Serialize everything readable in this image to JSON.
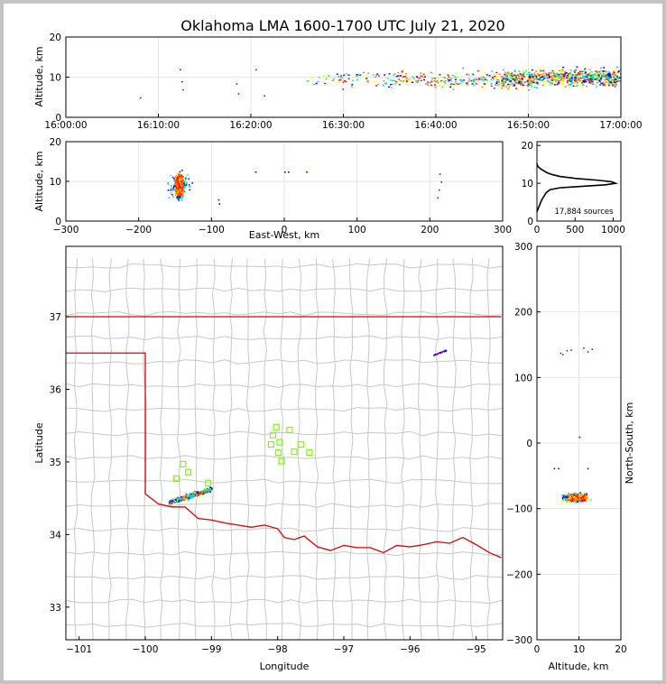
{
  "title": "Oklahoma LMA 1600-1700 UTC July 21, 2020",
  "chart_data": [
    {
      "id": "altitude-time",
      "type": "scatter",
      "xlabel": "",
      "ylabel": "Altitude, km",
      "x_ticks": [
        "16:00:00",
        "16:10:00",
        "16:20:00",
        "16:30:00",
        "16:40:00",
        "16:50:00",
        "17:00:00"
      ],
      "xlim_minutes": [
        0,
        60
      ],
      "ylim": [
        0,
        20
      ],
      "y_ticks": [
        0,
        10,
        20
      ],
      "grid": true
    },
    {
      "id": "altitude-eastwest",
      "type": "scatter",
      "xlabel": "East-West, km",
      "ylabel": "Altitude, km",
      "xlim": [
        -300,
        300
      ],
      "x_ticks": [
        -300,
        -200,
        -100,
        0,
        100,
        200,
        300
      ],
      "ylim": [
        0,
        20
      ],
      "y_ticks": [
        0,
        10,
        20
      ],
      "grid": true
    },
    {
      "id": "altitude-histogram",
      "type": "line",
      "xlim": [
        0,
        1100
      ],
      "x_ticks": [
        0,
        500,
        1000
      ],
      "ylim": [
        0,
        21
      ],
      "y_ticks": [
        0,
        10,
        20
      ],
      "annotation": "17,884 sources",
      "profile": [
        [
          0,
          2.5
        ],
        [
          20,
          3.5
        ],
        [
          40,
          4.5
        ],
        [
          60,
          5.5
        ],
        [
          90,
          6.5
        ],
        [
          120,
          7.5
        ],
        [
          170,
          8.3
        ],
        [
          300,
          8.8
        ],
        [
          600,
          9.2
        ],
        [
          900,
          9.6
        ],
        [
          1030,
          10.0
        ],
        [
          980,
          10.4
        ],
        [
          800,
          10.8
        ],
        [
          500,
          11.3
        ],
        [
          300,
          11.8
        ],
        [
          200,
          12.3
        ],
        [
          130,
          12.8
        ],
        [
          90,
          13.3
        ],
        [
          50,
          13.8
        ],
        [
          20,
          14.3
        ],
        [
          5,
          14.8
        ],
        [
          0,
          15.2
        ]
      ]
    },
    {
      "id": "plan-view",
      "type": "scatter",
      "xlabel": "Longitude",
      "ylabel": "Latitude",
      "xlim": [
        -101.2,
        -94.6
      ],
      "x_ticks": [
        -101,
        -100,
        -99,
        -98,
        -97,
        -96,
        -95
      ],
      "ylim": [
        32.55,
        37.97
      ],
      "y_ticks": [
        33,
        34,
        35,
        36,
        37
      ],
      "stations": [
        [
          -98.02,
          35.48
        ],
        [
          -98.07,
          35.37
        ],
        [
          -97.82,
          35.44
        ],
        [
          -97.97,
          35.27
        ],
        [
          -98.1,
          35.24
        ],
        [
          -97.65,
          35.24
        ],
        [
          -97.99,
          35.13
        ],
        [
          -97.75,
          35.14
        ],
        [
          -97.52,
          35.13
        ],
        [
          -97.94,
          35.01
        ],
        [
          -99.43,
          34.97
        ],
        [
          -99.35,
          34.86
        ],
        [
          -99.53,
          34.77
        ],
        [
          -99.05,
          34.71
        ]
      ]
    },
    {
      "id": "northsouth-altitude",
      "type": "scatter",
      "xlabel": "Altitude, km",
      "ylabel": "North-South, km",
      "xlim": [
        0,
        20
      ],
      "x_ticks": [
        0,
        10,
        20
      ],
      "ylim": [
        -300,
        300
      ],
      "y_ticks": [
        -300,
        -200,
        -100,
        0,
        100,
        200,
        300
      ]
    }
  ],
  "colors": {
    "state_border": "#e00000",
    "county_lines": "#c8c8c8",
    "stations": "#7cfc00",
    "palette": [
      "#0000ff",
      "#00c0ff",
      "#00ff80",
      "#ffff00",
      "#ff8000",
      "#ff0000",
      "#000000",
      "#8000c0"
    ]
  }
}
